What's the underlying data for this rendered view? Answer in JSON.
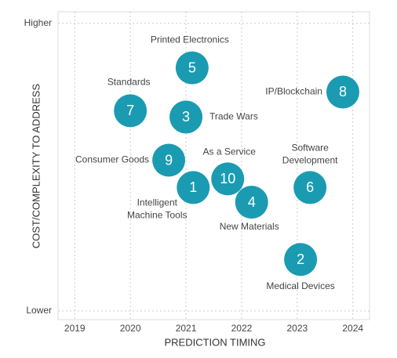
{
  "chart_data": {
    "type": "scatter",
    "xlabel": "PREDICTION TIMING",
    "ylabel": "COST/COMPLEXITY TO ADDRESS",
    "xlim": [
      2018.7,
      2024.3
    ],
    "xticks": [
      2019,
      2020,
      2021,
      2022,
      2023,
      2024
    ],
    "ylim": [
      -0.3,
      10.4
    ],
    "yticks": [
      {
        "value": 0,
        "label": "Lower"
      },
      {
        "value": 10,
        "label": "Higher"
      }
    ],
    "grid": true,
    "series": [
      {
        "color": "#1b9bb2",
        "x": [
          2021.13,
          2023.06,
          2021.0,
          2022.18,
          2021.11,
          2023.23,
          2020.0,
          2023.82,
          2020.69,
          2021.75
        ],
        "y": [
          4.29,
          1.79,
          6.74,
          3.78,
          8.45,
          4.29,
          6.96,
          7.61,
          5.24,
          4.59
        ],
        "labels": [
          "1",
          "2",
          "3",
          "4",
          "5",
          "6",
          "7",
          "8",
          "9",
          "10"
        ],
        "names": [
          [
            "Intelligent",
            "Machine Tools"
          ],
          [
            "Medical Devices"
          ],
          [
            "Trade Wars"
          ],
          [
            "New Materials"
          ],
          [
            "Printed Electronics"
          ],
          [
            "Software",
            "Development"
          ],
          [
            "Standards"
          ],
          [
            "IP/Blockchain"
          ],
          [
            "Consumer Goods"
          ],
          [
            "As a Service"
          ]
        ]
      }
    ]
  }
}
